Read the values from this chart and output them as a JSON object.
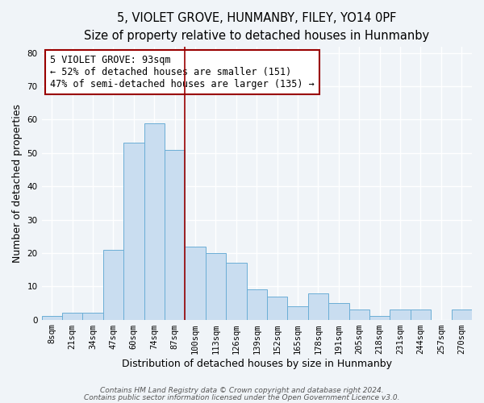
{
  "title": "5, VIOLET GROVE, HUNMANBY, FILEY, YO14 0PF",
  "subtitle": "Size of property relative to detached houses in Hunmanby",
  "xlabel": "Distribution of detached houses by size in Hunmanby",
  "ylabel": "Number of detached properties",
  "bar_labels": [
    "8sqm",
    "21sqm",
    "34sqm",
    "47sqm",
    "60sqm",
    "74sqm",
    "87sqm",
    "100sqm",
    "113sqm",
    "126sqm",
    "139sqm",
    "152sqm",
    "165sqm",
    "178sqm",
    "191sqm",
    "205sqm",
    "218sqm",
    "231sqm",
    "244sqm",
    "257sqm",
    "270sqm"
  ],
  "bar_values": [
    1,
    2,
    2,
    21,
    53,
    59,
    51,
    22,
    20,
    17,
    9,
    7,
    4,
    8,
    5,
    3,
    1,
    3,
    3,
    0,
    3
  ],
  "bar_color": "#c9ddf0",
  "bar_edge_color": "#6baed6",
  "property_line_x": 6.5,
  "property_line_color": "#990000",
  "annotation_text": "5 VIOLET GROVE: 93sqm\n← 52% of detached houses are smaller (151)\n47% of semi-detached houses are larger (135) →",
  "annotation_box_color": "#ffffff",
  "annotation_box_edge_color": "#990000",
  "ylim": [
    0,
    82
  ],
  "yticks": [
    0,
    10,
    20,
    30,
    40,
    50,
    60,
    70,
    80
  ],
  "footer_line1": "Contains HM Land Registry data © Crown copyright and database right 2024.",
  "footer_line2": "Contains public sector information licensed under the Open Government Licence v3.0.",
  "background_color": "#f0f4f8",
  "grid_color": "#ffffff",
  "title_fontsize": 10.5,
  "subtitle_fontsize": 9.5,
  "axis_label_fontsize": 9,
  "tick_fontsize": 7.5,
  "annotation_fontsize": 8.5,
  "footer_fontsize": 6.5
}
